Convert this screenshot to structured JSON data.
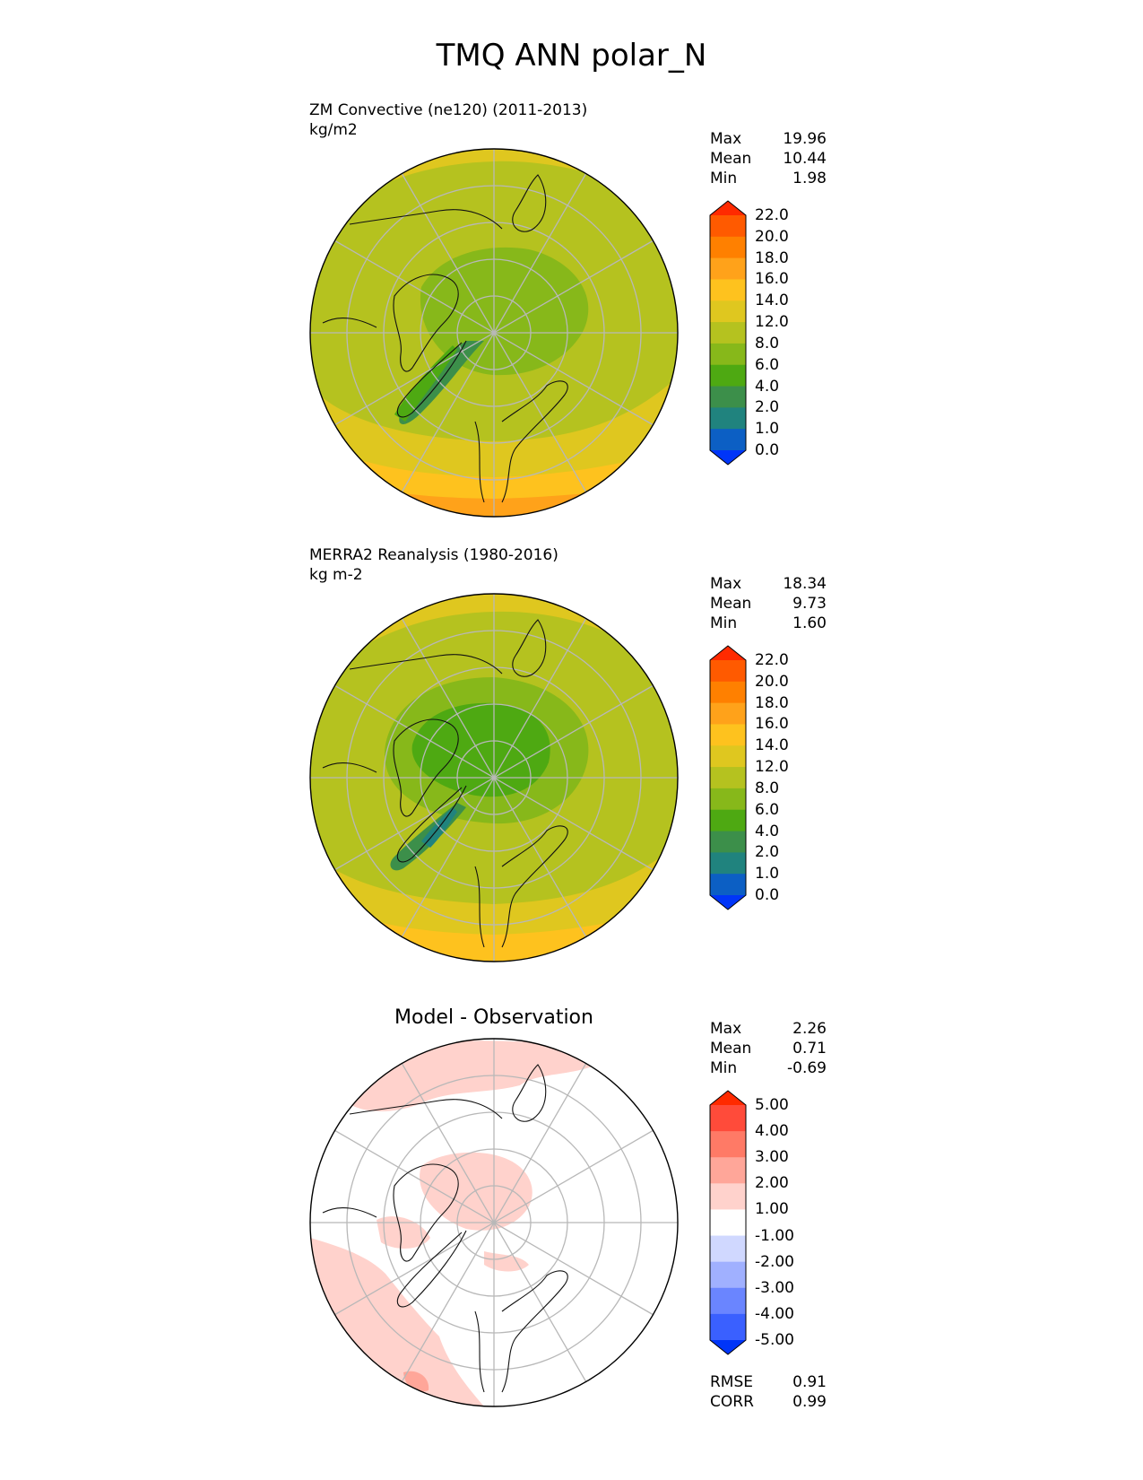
{
  "title": "TMQ ANN polar_N",
  "panels": [
    {
      "id": "test",
      "title_lines": [
        "ZM Convective (ne120) (2011-2013)",
        "kg/m2"
      ],
      "stats": [
        {
          "label": "Max",
          "value": "19.96"
        },
        {
          "label": "Mean",
          "value": "10.44"
        },
        {
          "label": "Min",
          "value": "1.98"
        }
      ],
      "colorbar": {
        "ticks": [
          "22.0",
          "20.0",
          "18.0",
          "16.0",
          "14.0",
          "12.0",
          "8.0",
          "6.0",
          "4.0",
          "2.0",
          "1.0",
          "0.0"
        ],
        "colors": [
          "#ff2a00",
          "#ff5a00",
          "#ff8000",
          "#ffa21a",
          "#fec21e",
          "#dfc71f",
          "#b5c21f",
          "#87b81a",
          "#4ea912",
          "#3c8f4a",
          "#20837e",
          "#0c5fc4",
          "#0035f8"
        ]
      }
    },
    {
      "id": "reference",
      "title_lines": [
        "MERRA2 Reanalysis (1980-2016)",
        "kg m-2"
      ],
      "stats": [
        {
          "label": "Max",
          "value": "18.34"
        },
        {
          "label": "Mean",
          "value": "9.73"
        },
        {
          "label": "Min",
          "value": "1.60"
        }
      ],
      "colorbar": {
        "ticks": [
          "22.0",
          "20.0",
          "18.0",
          "16.0",
          "14.0",
          "12.0",
          "8.0",
          "6.0",
          "4.0",
          "2.0",
          "1.0",
          "0.0"
        ],
        "colors": [
          "#ff2a00",
          "#ff5a00",
          "#ff8000",
          "#ffa21a",
          "#fec21e",
          "#dfc71f",
          "#b5c21f",
          "#87b81a",
          "#4ea912",
          "#3c8f4a",
          "#20837e",
          "#0c5fc4",
          "#0035f8"
        ]
      }
    },
    {
      "id": "difference",
      "title_lines": [
        "Model - Observation"
      ],
      "stats": [
        {
          "label": "Max",
          "value": "2.26"
        },
        {
          "label": "Mean",
          "value": "0.71"
        },
        {
          "label": "Min",
          "value": "-0.69"
        }
      ],
      "colorbar": {
        "ticks": [
          "5.00",
          "4.00",
          "3.00",
          "2.00",
          "1.00",
          "-1.00",
          "-2.00",
          "-3.00",
          "-4.00",
          "-5.00"
        ],
        "colors": [
          "#ff2a00",
          "#ff4b3a",
          "#ff7a66",
          "#ffa699",
          "#ffd2cc",
          "#ffffff",
          "#d0d8ff",
          "#a0b0ff",
          "#6a85ff",
          "#3a60ff",
          "#0035f8"
        ]
      },
      "metrics": [
        {
          "label": "RMSE",
          "value": "0.91"
        },
        {
          "label": "CORR",
          "value": "0.99"
        }
      ]
    }
  ]
}
